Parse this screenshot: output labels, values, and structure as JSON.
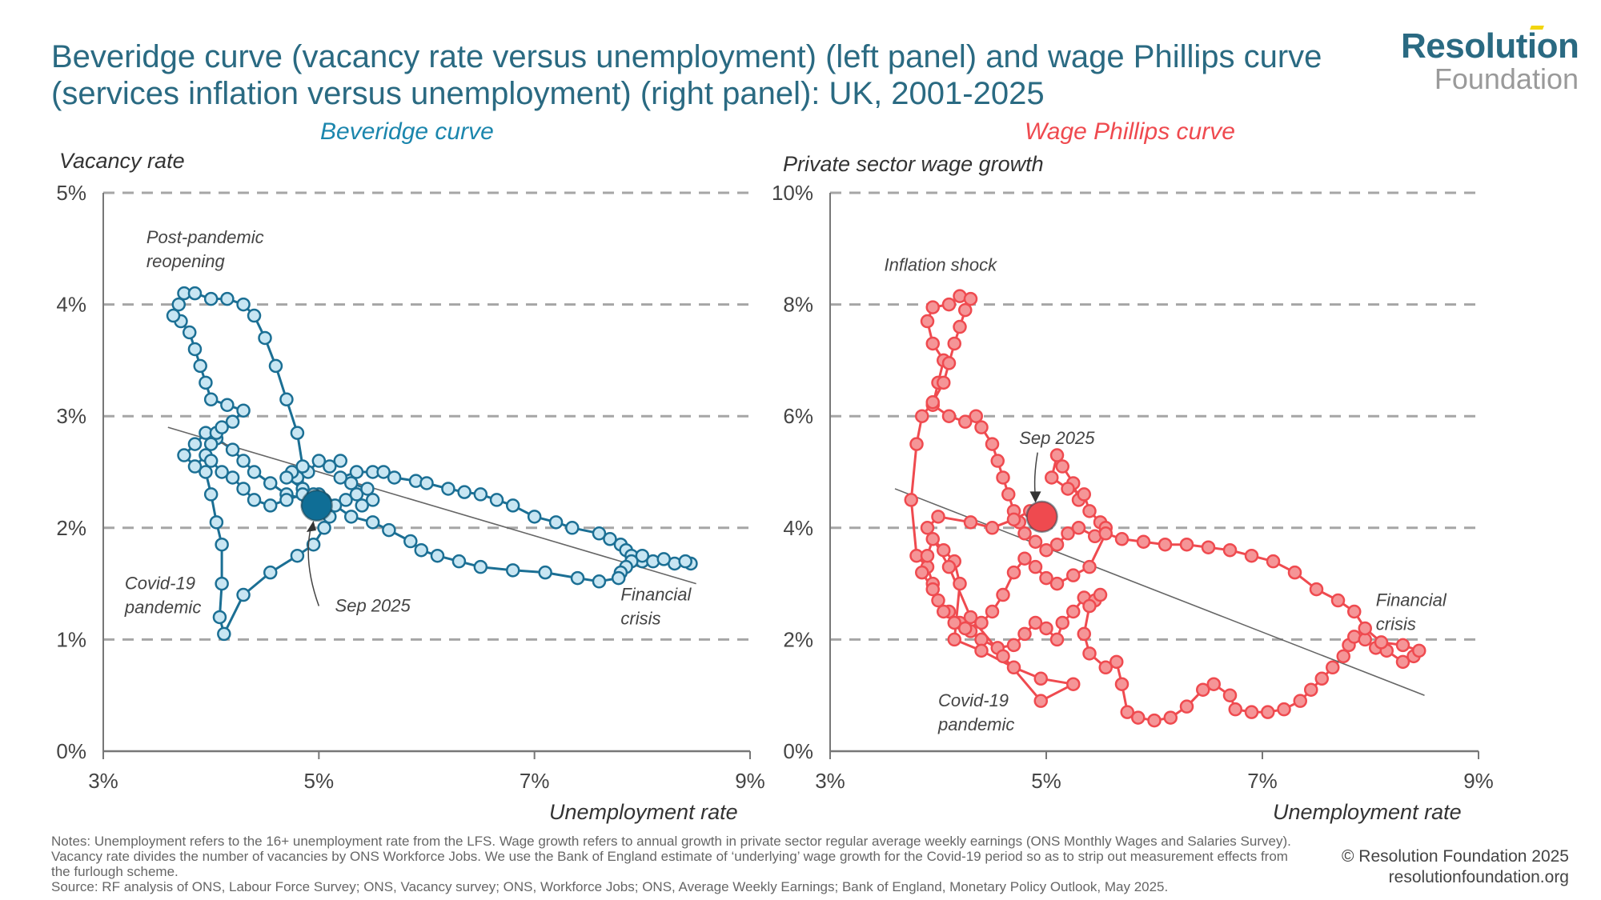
{
  "header": {
    "title": "Beveridge curve (vacancy rate versus unemployment) (left panel) and wage Phillips curve (services inflation versus unemployment) (right panel): UK, 2001-2025",
    "logo_line1": "Resolution",
    "logo_line2": "Foundation"
  },
  "colors": {
    "title": "#2a6a82",
    "beveridge_line": "#1b6f94",
    "beveridge_fill": "#c8e6f3",
    "beveridge_highlight": "#0f6e96",
    "phillips_line": "#ef4a4f",
    "phillips_fill": "#f59597",
    "phillips_highlight": "#ef4a4f",
    "grid": "#a6a6a6",
    "trend": "#666666"
  },
  "chart_data": [
    {
      "type": "scatter",
      "title": "Beveridge curve",
      "ylabel": "Vacancy rate",
      "xlabel": "Unemployment rate",
      "xlim": [
        3,
        9
      ],
      "ylim": [
        0,
        5
      ],
      "xticks": [
        "3%",
        "5%",
        "7%",
        "9%"
      ],
      "yticks": [
        "0%",
        "1%",
        "2%",
        "3%",
        "4%",
        "5%"
      ],
      "grid": "horizontal dashed",
      "connected": true,
      "trendline": [
        [
          3.6,
          2.9
        ],
        [
          8.5,
          1.5
        ]
      ],
      "annotations": [
        {
          "text": "Post-pandemic reopening",
          "x": 3.4,
          "y": 4.55
        },
        {
          "text": "Covid-19 pandemic",
          "x": 3.2,
          "y": 1.45
        },
        {
          "text": "Sep 2025",
          "x": 5.15,
          "y": 1.25
        },
        {
          "text": "Financial crisis",
          "x": 7.8,
          "y": 1.35
        }
      ],
      "highlight": {
        "label": "Sep 2025",
        "x": 4.98,
        "y": 2.2
      },
      "points": [
        [
          5.2,
          2.6
        ],
        [
          5.1,
          2.55
        ],
        [
          5.0,
          2.6
        ],
        [
          4.9,
          2.5
        ],
        [
          4.8,
          2.45
        ],
        [
          4.75,
          2.5
        ],
        [
          4.7,
          2.45
        ],
        [
          4.85,
          2.35
        ],
        [
          5.0,
          2.3
        ],
        [
          5.1,
          2.2
        ],
        [
          5.25,
          2.25
        ],
        [
          5.35,
          2.3
        ],
        [
          5.4,
          2.2
        ],
        [
          5.5,
          2.25
        ],
        [
          5.45,
          2.35
        ],
        [
          5.3,
          2.4
        ],
        [
          5.2,
          2.45
        ],
        [
          5.35,
          2.5
        ],
        [
          5.5,
          2.5
        ],
        [
          5.6,
          2.5
        ],
        [
          5.7,
          2.45
        ],
        [
          5.9,
          2.42
        ],
        [
          6.0,
          2.4
        ],
        [
          6.2,
          2.35
        ],
        [
          6.35,
          2.32
        ],
        [
          6.5,
          2.3
        ],
        [
          6.65,
          2.25
        ],
        [
          6.8,
          2.2
        ],
        [
          7.0,
          2.1
        ],
        [
          7.2,
          2.05
        ],
        [
          7.35,
          2.0
        ],
        [
          7.6,
          1.95
        ],
        [
          7.7,
          1.9
        ],
        [
          7.8,
          1.85
        ],
        [
          7.85,
          1.8
        ],
        [
          7.9,
          1.75
        ],
        [
          8.0,
          1.7
        ],
        [
          8.1,
          1.7
        ],
        [
          8.3,
          1.68
        ],
        [
          8.45,
          1.68
        ],
        [
          8.4,
          1.7
        ],
        [
          8.2,
          1.72
        ],
        [
          8.0,
          1.75
        ],
        [
          7.9,
          1.7
        ],
        [
          7.85,
          1.65
        ],
        [
          7.8,
          1.6
        ],
        [
          7.78,
          1.55
        ],
        [
          7.6,
          1.52
        ],
        [
          7.4,
          1.55
        ],
        [
          7.1,
          1.6
        ],
        [
          6.8,
          1.62
        ],
        [
          6.5,
          1.65
        ],
        [
          6.3,
          1.7
        ],
        [
          6.1,
          1.75
        ],
        [
          5.95,
          1.8
        ],
        [
          5.85,
          1.88
        ],
        [
          5.65,
          1.98
        ],
        [
          5.5,
          2.05
        ],
        [
          5.3,
          2.1
        ],
        [
          5.15,
          2.2
        ],
        [
          4.9,
          2.25
        ],
        [
          4.7,
          2.3
        ],
        [
          4.55,
          2.4
        ],
        [
          4.4,
          2.5
        ],
        [
          4.3,
          2.6
        ],
        [
          4.2,
          2.7
        ],
        [
          4.05,
          2.8
        ],
        [
          3.95,
          2.85
        ],
        [
          3.85,
          2.75
        ],
        [
          3.75,
          2.65
        ],
        [
          3.85,
          2.55
        ],
        [
          3.95,
          2.65
        ],
        [
          4.0,
          2.75
        ],
        [
          4.05,
          2.85
        ],
        [
          4.1,
          2.9
        ],
        [
          4.2,
          2.95
        ],
        [
          4.3,
          3.05
        ],
        [
          4.15,
          3.1
        ],
        [
          4.0,
          3.15
        ],
        [
          3.95,
          3.3
        ],
        [
          3.9,
          3.45
        ],
        [
          3.85,
          3.6
        ],
        [
          3.8,
          3.75
        ],
        [
          3.72,
          3.85
        ],
        [
          3.65,
          3.9
        ],
        [
          3.7,
          4.0
        ],
        [
          3.75,
          4.1
        ],
        [
          3.85,
          4.1
        ],
        [
          4.0,
          4.05
        ],
        [
          4.15,
          4.05
        ],
        [
          4.3,
          4.0
        ],
        [
          4.4,
          3.9
        ],
        [
          4.5,
          3.7
        ],
        [
          4.6,
          3.45
        ],
        [
          4.7,
          3.15
        ],
        [
          4.8,
          2.85
        ],
        [
          4.85,
          2.55
        ],
        [
          4.85,
          2.3
        ],
        [
          4.7,
          2.25
        ],
        [
          4.55,
          2.2
        ],
        [
          4.4,
          2.25
        ],
        [
          4.3,
          2.35
        ],
        [
          4.2,
          2.45
        ],
        [
          4.1,
          2.5
        ],
        [
          4.0,
          2.6
        ],
        [
          3.95,
          2.5
        ],
        [
          4.0,
          2.3
        ],
        [
          4.05,
          2.05
        ],
        [
          4.1,
          1.85
        ],
        [
          4.1,
          1.5
        ],
        [
          4.08,
          1.2
        ],
        [
          4.12,
          1.05
        ],
        [
          4.3,
          1.4
        ],
        [
          4.55,
          1.6
        ],
        [
          4.8,
          1.75
        ],
        [
          4.95,
          1.85
        ],
        [
          5.05,
          2.0
        ],
        [
          5.1,
          2.1
        ],
        [
          5.05,
          2.25
        ],
        [
          4.95,
          2.3
        ],
        [
          4.9,
          2.2
        ],
        [
          4.95,
          2.15
        ],
        [
          4.98,
          2.2
        ]
      ]
    },
    {
      "type": "scatter",
      "title": "Wage Phillips curve",
      "ylabel": "Private sector wage growth",
      "xlabel": "Unemployment rate",
      "xlim": [
        3,
        9
      ],
      "ylim": [
        0,
        10
      ],
      "xticks": [
        "3%",
        "5%",
        "7%",
        "9%"
      ],
      "yticks": [
        "0%",
        "2%",
        "4%",
        "6%",
        "8%",
        "10%"
      ],
      "grid": "horizontal dashed",
      "connected": true,
      "trendline": [
        [
          3.6,
          4.7
        ],
        [
          8.5,
          1.0
        ]
      ],
      "annotations": [
        {
          "text": "Inflation shock",
          "x": 3.5,
          "y": 8.6
        },
        {
          "text": "Sep 2025",
          "x": 4.75,
          "y": 5.5
        },
        {
          "text": "Covid-19 pandemic",
          "x": 4.0,
          "y": 0.8
        },
        {
          "text": "Financial crisis",
          "x": 8.05,
          "y": 2.6
        }
      ],
      "highlight": {
        "label": "Sep 2025",
        "x": 4.96,
        "y": 4.2
      },
      "points": [
        [
          5.3,
          4.5
        ],
        [
          5.25,
          4.8
        ],
        [
          5.15,
          5.1
        ],
        [
          5.1,
          5.3
        ],
        [
          5.05,
          4.9
        ],
        [
          5.2,
          4.7
        ],
        [
          5.35,
          4.6
        ],
        [
          5.4,
          4.3
        ],
        [
          5.5,
          4.1
        ],
        [
          5.55,
          4.0
        ],
        [
          5.45,
          3.85
        ],
        [
          5.3,
          4.0
        ],
        [
          5.2,
          3.9
        ],
        [
          5.1,
          3.7
        ],
        [
          5.0,
          3.6
        ],
        [
          4.9,
          3.75
        ],
        [
          4.8,
          3.9
        ],
        [
          4.75,
          4.1
        ],
        [
          4.7,
          4.3
        ],
        [
          4.65,
          4.6
        ],
        [
          4.6,
          4.9
        ],
        [
          4.55,
          5.2
        ],
        [
          4.5,
          5.5
        ],
        [
          4.4,
          5.8
        ],
        [
          4.35,
          6.0
        ],
        [
          4.25,
          5.9
        ],
        [
          4.1,
          6.0
        ],
        [
          3.95,
          6.2
        ],
        [
          4.0,
          6.6
        ],
        [
          4.05,
          7.0
        ],
        [
          3.95,
          7.3
        ],
        [
          3.9,
          7.7
        ],
        [
          3.95,
          7.95
        ],
        [
          4.1,
          8.0
        ],
        [
          4.2,
          8.15
        ],
        [
          4.3,
          8.1
        ],
        [
          4.25,
          7.9
        ],
        [
          4.2,
          7.6
        ],
        [
          4.15,
          7.3
        ],
        [
          4.1,
          6.95
        ],
        [
          4.05,
          6.6
        ],
        [
          3.95,
          6.25
        ],
        [
          3.85,
          6.0
        ],
        [
          3.8,
          5.5
        ],
        [
          3.75,
          4.5
        ],
        [
          3.8,
          3.5
        ],
        [
          3.9,
          3.3
        ],
        [
          3.95,
          3.0
        ],
        [
          4.0,
          2.7
        ],
        [
          4.1,
          2.5
        ],
        [
          4.2,
          2.3
        ],
        [
          4.3,
          2.15
        ],
        [
          4.4,
          2.0
        ],
        [
          4.55,
          1.85
        ],
        [
          4.7,
          1.9
        ],
        [
          4.8,
          2.1
        ],
        [
          4.9,
          2.3
        ],
        [
          5.0,
          2.2
        ],
        [
          5.1,
          2.0
        ],
        [
          5.15,
          2.3
        ],
        [
          5.25,
          2.5
        ],
        [
          5.35,
          2.75
        ],
        [
          5.45,
          2.7
        ],
        [
          5.5,
          2.8
        ],
        [
          5.4,
          2.6
        ],
        [
          5.35,
          2.1
        ],
        [
          5.4,
          1.75
        ],
        [
          5.55,
          1.5
        ],
        [
          5.65,
          1.6
        ],
        [
          5.7,
          1.2
        ],
        [
          5.75,
          0.7
        ],
        [
          5.85,
          0.6
        ],
        [
          6.0,
          0.55
        ],
        [
          6.15,
          0.6
        ],
        [
          6.3,
          0.8
        ],
        [
          6.45,
          1.1
        ],
        [
          6.55,
          1.2
        ],
        [
          6.7,
          1.0
        ],
        [
          6.75,
          0.75
        ],
        [
          6.9,
          0.7
        ],
        [
          7.05,
          0.7
        ],
        [
          7.2,
          0.75
        ],
        [
          7.35,
          0.9
        ],
        [
          7.45,
          1.1
        ],
        [
          7.55,
          1.3
        ],
        [
          7.65,
          1.5
        ],
        [
          7.75,
          1.7
        ],
        [
          7.8,
          1.9
        ],
        [
          7.85,
          2.05
        ],
        [
          7.95,
          2.0
        ],
        [
          8.05,
          1.85
        ],
        [
          8.15,
          1.8
        ],
        [
          8.3,
          1.6
        ],
        [
          8.4,
          1.7
        ],
        [
          8.45,
          1.8
        ],
        [
          8.3,
          1.9
        ],
        [
          8.1,
          1.95
        ],
        [
          7.95,
          2.2
        ],
        [
          7.85,
          2.5
        ],
        [
          7.7,
          2.7
        ],
        [
          7.5,
          2.9
        ],
        [
          7.3,
          3.2
        ],
        [
          7.1,
          3.4
        ],
        [
          6.9,
          3.5
        ],
        [
          6.7,
          3.6
        ],
        [
          6.5,
          3.65
        ],
        [
          6.3,
          3.7
        ],
        [
          6.1,
          3.7
        ],
        [
          5.9,
          3.75
        ],
        [
          5.7,
          3.8
        ],
        [
          5.55,
          3.9
        ],
        [
          5.4,
          3.3
        ],
        [
          5.25,
          3.15
        ],
        [
          5.1,
          3.0
        ],
        [
          5.0,
          3.1
        ],
        [
          4.9,
          3.3
        ],
        [
          4.8,
          3.45
        ],
        [
          4.7,
          3.2
        ],
        [
          4.6,
          2.8
        ],
        [
          4.5,
          2.5
        ],
        [
          4.4,
          2.3
        ],
        [
          4.25,
          2.2
        ],
        [
          4.15,
          2.3
        ],
        [
          4.05,
          2.5
        ],
        [
          3.95,
          2.9
        ],
        [
          3.85,
          3.2
        ],
        [
          3.9,
          3.5
        ],
        [
          3.95,
          3.8
        ],
        [
          4.05,
          3.6
        ],
        [
          4.15,
          3.4
        ],
        [
          4.2,
          3.0
        ],
        [
          4.15,
          2.0
        ],
        [
          4.4,
          1.8
        ],
        [
          4.7,
          1.5
        ],
        [
          4.95,
          1.3
        ],
        [
          5.25,
          1.2
        ],
        [
          4.95,
          0.9
        ],
        [
          4.6,
          1.7
        ],
        [
          4.3,
          2.4
        ],
        [
          4.1,
          3.3
        ],
        [
          3.9,
          4.0
        ],
        [
          4.0,
          4.2
        ],
        [
          4.3,
          4.1
        ],
        [
          4.5,
          4.0
        ],
        [
          4.7,
          4.15
        ],
        [
          4.85,
          4.3
        ],
        [
          4.96,
          4.2
        ]
      ]
    }
  ],
  "panels": {
    "left_title": "Beveridge curve",
    "right_title": "Wage Phillips curve",
    "left_ylabel": "Vacancy rate",
    "right_ylabel": "Private sector wage growth",
    "xlabel": "Unemployment rate"
  },
  "footer": {
    "notes": "Notes: Unemployment refers to the 16+ unemployment rate from the LFS. Wage growth refers to annual growth in private sector regular average weekly earnings (ONS Monthly Wages and Salaries Survey). Vacancy rate divides the number of vacancies by ONS Workforce Jobs. We use the Bank of England estimate of ‘underlying’ wage growth for the Covid-19 period so as to strip out measurement effects from the furlough scheme.",
    "source": "Source: RF analysis of ONS, Labour Force Survey; ONS, Vacancy survey; ONS, Workforce Jobs; ONS, Average Weekly Earnings; Bank of England, Monetary Policy Outlook, May 2025.",
    "copyright": "© Resolution Foundation 2025",
    "url": "resolutionfoundation.org"
  }
}
